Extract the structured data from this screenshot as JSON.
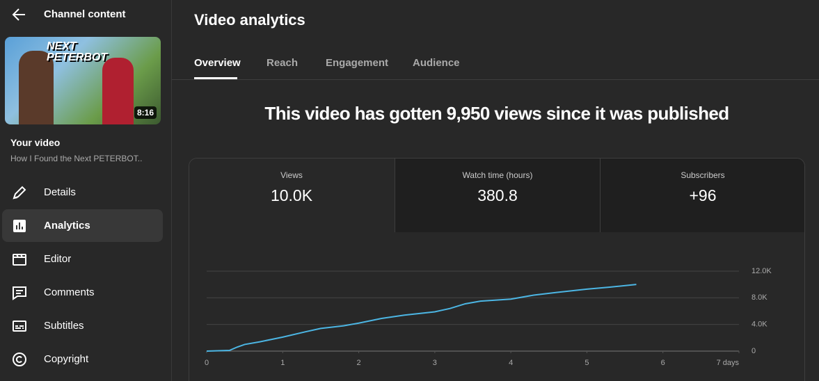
{
  "sidebar": {
    "title": "Channel content",
    "thumbnail": {
      "overlay_text": "NEXT PETERBOT",
      "duration": "8:16"
    },
    "video_label": "Your video",
    "video_title": "How I Found the Next PETERBOT..",
    "nav": [
      "Details",
      "Analytics",
      "Editor",
      "Comments",
      "Subtitles",
      "Copyright"
    ]
  },
  "main": {
    "title": "Video analytics",
    "tabs": [
      "Overview",
      "Reach",
      "Engagement",
      "Audience"
    ],
    "headline": "This video has gotten 9,950 views since it was published",
    "metrics": [
      {
        "label": "Views",
        "value": "10.0K"
      },
      {
        "label": "Watch time (hours)",
        "value": "380.8"
      },
      {
        "label": "Subscribers",
        "value": "+96"
      }
    ]
  },
  "chart_data": {
    "type": "line",
    "color": "#4cb6e4",
    "grid": true,
    "x": [
      0,
      0.3,
      0.4,
      0.5,
      0.7,
      1,
      1.3,
      1.5,
      1.8,
      2,
      2.3,
      2.6,
      3,
      3.2,
      3.4,
      3.6,
      4,
      4.3,
      4.6,
      5,
      5.3,
      5.65
    ],
    "values": [
      0,
      100,
      600,
      1000,
      1400,
      2100,
      2900,
      3400,
      3800,
      4200,
      4900,
      5400,
      5900,
      6400,
      7100,
      7500,
      7800,
      8400,
      8800,
      9300,
      9600,
      10000
    ],
    "xlim": [
      0,
      7
    ],
    "xticks": [
      0,
      1,
      2,
      3,
      4,
      5,
      6,
      {
        "value": 7,
        "label": "7 days"
      }
    ],
    "ylim": [
      0,
      12000
    ],
    "yticks": [
      0,
      {
        "value": 4000,
        "label": "4.0K"
      },
      {
        "value": 8000,
        "label": "8.0K"
      },
      {
        "value": 12000,
        "label": "12.0K"
      }
    ]
  }
}
